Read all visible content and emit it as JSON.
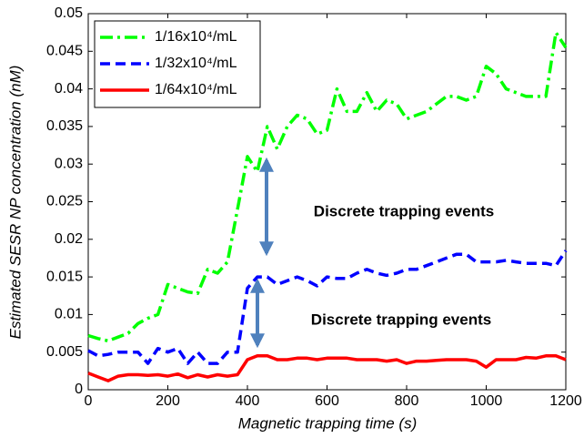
{
  "chart_data": {
    "type": "line",
    "xlabel": "Magnetic trapping time (s)",
    "ylabel": "Estimated SESR NP concentration (nM)",
    "annotations": [
      "Discrete trapping events",
      "Discrete trapping events"
    ],
    "x": [
      0,
      25,
      50,
      75,
      100,
      125,
      150,
      175,
      200,
      225,
      250,
      275,
      300,
      325,
      350,
      375,
      400,
      425,
      450,
      475,
      500,
      525,
      550,
      575,
      600,
      625,
      650,
      675,
      700,
      725,
      750,
      775,
      800,
      825,
      850,
      875,
      900,
      925,
      950,
      975,
      1000,
      1025,
      1050,
      1075,
      1100,
      1125,
      1150,
      1175,
      1200
    ],
    "series": [
      {
        "name": "1/16x10⁴/mL",
        "color": "#00ff00",
        "linestyle": "dashdot",
        "values": [
          0.0072,
          0.0068,
          0.0065,
          0.007,
          0.0075,
          0.0088,
          0.0095,
          0.01,
          0.014,
          0.0135,
          0.013,
          0.0128,
          0.016,
          0.0155,
          0.017,
          0.024,
          0.031,
          0.029,
          0.035,
          0.032,
          0.035,
          0.0365,
          0.036,
          0.034,
          0.0345,
          0.04,
          0.037,
          0.037,
          0.0395,
          0.037,
          0.0385,
          0.038,
          0.036,
          0.0365,
          0.037,
          0.038,
          0.039,
          0.039,
          0.0385,
          0.039,
          0.043,
          0.042,
          0.04,
          0.0395,
          0.039,
          0.039,
          0.039,
          0.0475,
          0.0455
        ]
      },
      {
        "name": "1/32x10⁴/mL",
        "color": "#0000ff",
        "linestyle": "dashed",
        "values": [
          0.0052,
          0.0045,
          0.0047,
          0.005,
          0.005,
          0.005,
          0.0035,
          0.0055,
          0.005,
          0.0055,
          0.0035,
          0.005,
          0.0035,
          0.0035,
          0.005,
          0.005,
          0.0135,
          0.015,
          0.015,
          0.014,
          0.0145,
          0.015,
          0.0145,
          0.0138,
          0.015,
          0.0148,
          0.0148,
          0.0155,
          0.016,
          0.0155,
          0.0152,
          0.0155,
          0.016,
          0.016,
          0.0165,
          0.017,
          0.0175,
          0.018,
          0.018,
          0.017,
          0.017,
          0.017,
          0.0172,
          0.017,
          0.0168,
          0.0168,
          0.0168,
          0.0165,
          0.0185
        ]
      },
      {
        "name": "1/64x10⁴/mL",
        "color": "#ff0000",
        "linestyle": "solid",
        "values": [
          0.0022,
          0.0017,
          0.0012,
          0.0018,
          0.002,
          0.002,
          0.0019,
          0.002,
          0.0018,
          0.0021,
          0.0016,
          0.002,
          0.0017,
          0.002,
          0.0018,
          0.002,
          0.004,
          0.0045,
          0.0045,
          0.004,
          0.004,
          0.0042,
          0.0042,
          0.004,
          0.0042,
          0.0042,
          0.0042,
          0.004,
          0.004,
          0.004,
          0.0038,
          0.004,
          0.0035,
          0.0038,
          0.0038,
          0.0039,
          0.004,
          0.004,
          0.004,
          0.0038,
          0.003,
          0.004,
          0.004,
          0.004,
          0.0043,
          0.0042,
          0.0045,
          0.0045,
          0.004
        ]
      }
    ],
    "xlim": [
      0,
      1200
    ],
    "xticks": [
      0,
      200,
      400,
      600,
      800,
      1000,
      1200
    ],
    "ylim": [
      0,
      0.05
    ],
    "yticks": [
      0,
      0.005,
      0.01,
      0.015,
      0.02,
      0.025,
      0.03,
      0.035,
      0.04,
      0.045,
      0.05
    ],
    "legend": "upper left",
    "grid": false
  }
}
